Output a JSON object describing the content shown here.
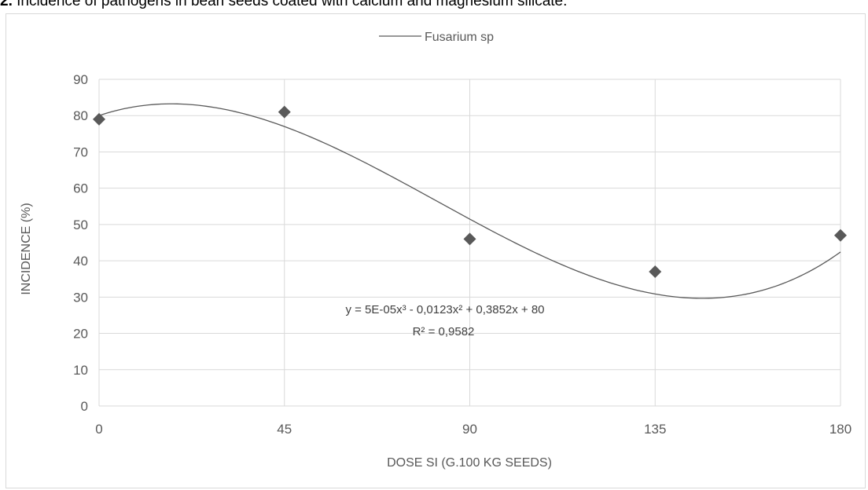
{
  "caption": {
    "number": "2.",
    "text": " Incidence of pathogens in bean seeds coated with calcium and magnesium silicate."
  },
  "chart_data": {
    "type": "scatter",
    "title": "",
    "xlabel": "DOSE SI (G.100 KG SEEDS)",
    "ylabel": "INCIDENCE (%)",
    "xlim": [
      0,
      180
    ],
    "ylim": [
      0,
      90
    ],
    "x_ticks": [
      "0",
      "45",
      "90",
      "135",
      "180"
    ],
    "y_ticks": [
      "0",
      "10",
      "20",
      "30",
      "40",
      "50",
      "60",
      "70",
      "80",
      "90"
    ],
    "grid": true,
    "legend_position": "top-center",
    "series": [
      {
        "name": "Fusarium sp",
        "marker": "diamond",
        "color": "#595959",
        "x": [
          0,
          45,
          90,
          135,
          180
        ],
        "y": [
          79,
          81,
          46,
          37,
          47
        ]
      }
    ],
    "trendline": {
      "type": "polynomial",
      "order": 3,
      "coefficients": [
        5e-05,
        -0.0123,
        0.3852,
        80
      ],
      "color": "#595959"
    },
    "annotations": [
      "y = 5E-05x³ - 0,0123x² + 0,3852x + 80",
      "R² = 0,9582"
    ]
  }
}
